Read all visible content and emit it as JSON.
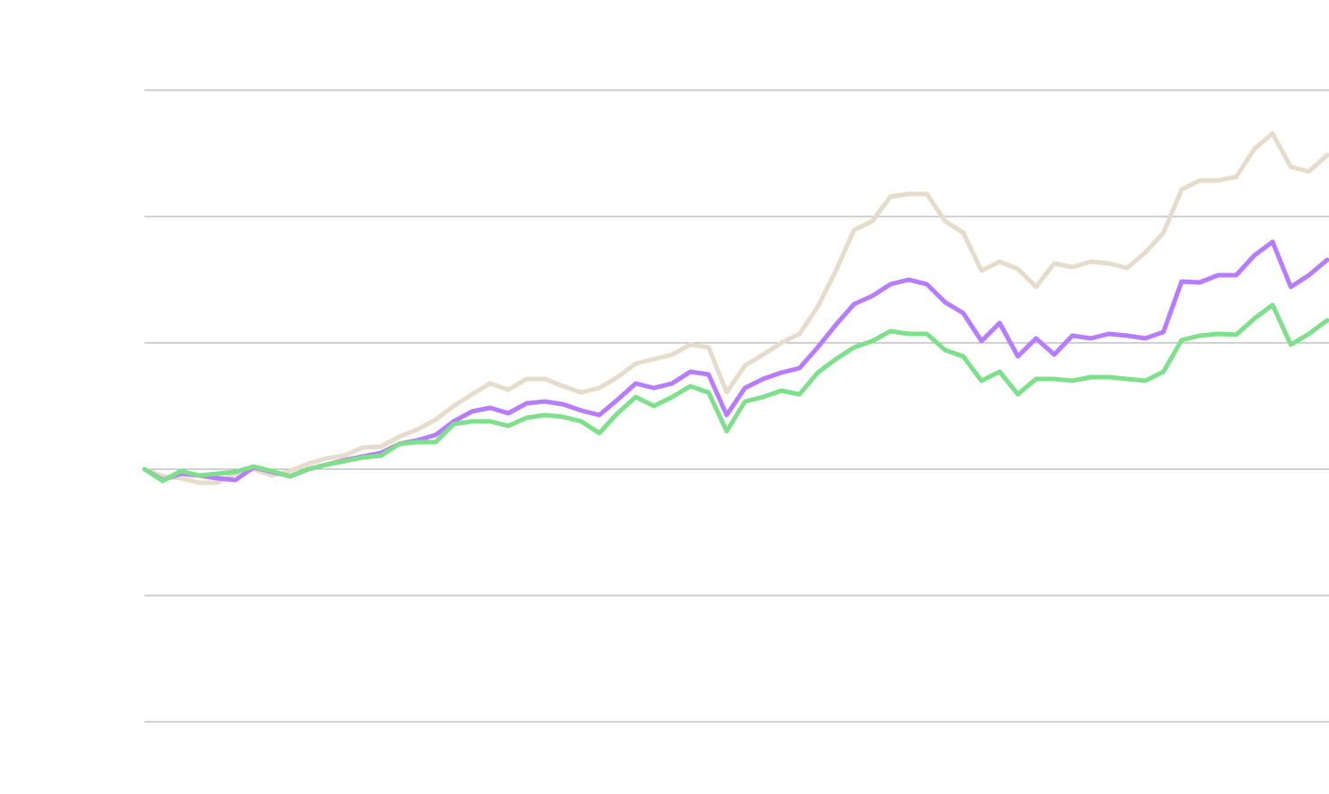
{
  "chart_data": {
    "type": "line",
    "categories": [
      null,
      null,
      null,
      null,
      null,
      null,
      null,
      null,
      null,
      null,
      null,
      null,
      null,
      null,
      null,
      null,
      null,
      null,
      null,
      null,
      null,
      null,
      null,
      null,
      null,
      null,
      null,
      null,
      null,
      null,
      null,
      null,
      null,
      null,
      null,
      null,
      null,
      null,
      null,
      null,
      null,
      null,
      null,
      null,
      null,
      null,
      null,
      null,
      null,
      null,
      null,
      null,
      null,
      null,
      null,
      null,
      null,
      null,
      null,
      null,
      null,
      null,
      null,
      null,
      null,
      null
    ],
    "series": [
      {
        "color": "#e6dccb",
        "values": [
          0,
          -8,
          -10,
          -15,
          -15,
          -5,
          0,
          -7,
          -2,
          6,
          12,
          15,
          24,
          25,
          36,
          44,
          55,
          70,
          83,
          95,
          88,
          100,
          100,
          92,
          85,
          90,
          102,
          117,
          122,
          127,
          138,
          135,
          85,
          115,
          127,
          140,
          150,
          180,
          220,
          265,
          275,
          302,
          305,
          305,
          275,
          262,
          220,
          230,
          222,
          202,
          228,
          224,
          230,
          228,
          223,
          240,
          262,
          310,
          320,
          320,
          324,
          355,
          372,
          335,
          330,
          348
        ]
      },
      {
        "color": "#b77cff",
        "values": [
          0,
          -12,
          -5,
          -7,
          -10,
          -12,
          2,
          -3,
          -8,
          0,
          5,
          10,
          14,
          18,
          28,
          32,
          38,
          53,
          64,
          68,
          62,
          73,
          75,
          72,
          65,
          60,
          77,
          95,
          90,
          95,
          108,
          105,
          60,
          90,
          100,
          107,
          112,
          135,
          160,
          183,
          192,
          205,
          210,
          205,
          185,
          173,
          142,
          162,
          125,
          145,
          127,
          148,
          145,
          150,
          148,
          145,
          152,
          208,
          207,
          215,
          215,
          237,
          252,
          202,
          215,
          232
        ]
      },
      {
        "color": "#7ee08a",
        "values": [
          0,
          -13,
          -2,
          -7,
          -5,
          -3,
          3,
          -2,
          -8,
          0,
          5,
          9,
          13,
          15,
          28,
          30,
          30,
          50,
          53,
          53,
          48,
          57,
          60,
          58,
          53,
          40,
          62,
          80,
          70,
          80,
          92,
          85,
          42,
          75,
          80,
          87,
          83,
          107,
          122,
          135,
          142,
          153,
          150,
          150,
          132,
          125,
          98,
          108,
          83,
          100,
          100,
          98,
          102,
          102,
          100,
          98,
          108,
          143,
          148,
          150,
          149,
          167,
          182,
          138,
          150,
          165
        ]
      }
    ],
    "ylim": [
      -280,
      420
    ],
    "yticks": [
      -280,
      -140,
      0,
      140,
      280,
      420
    ],
    "grid": true
  }
}
